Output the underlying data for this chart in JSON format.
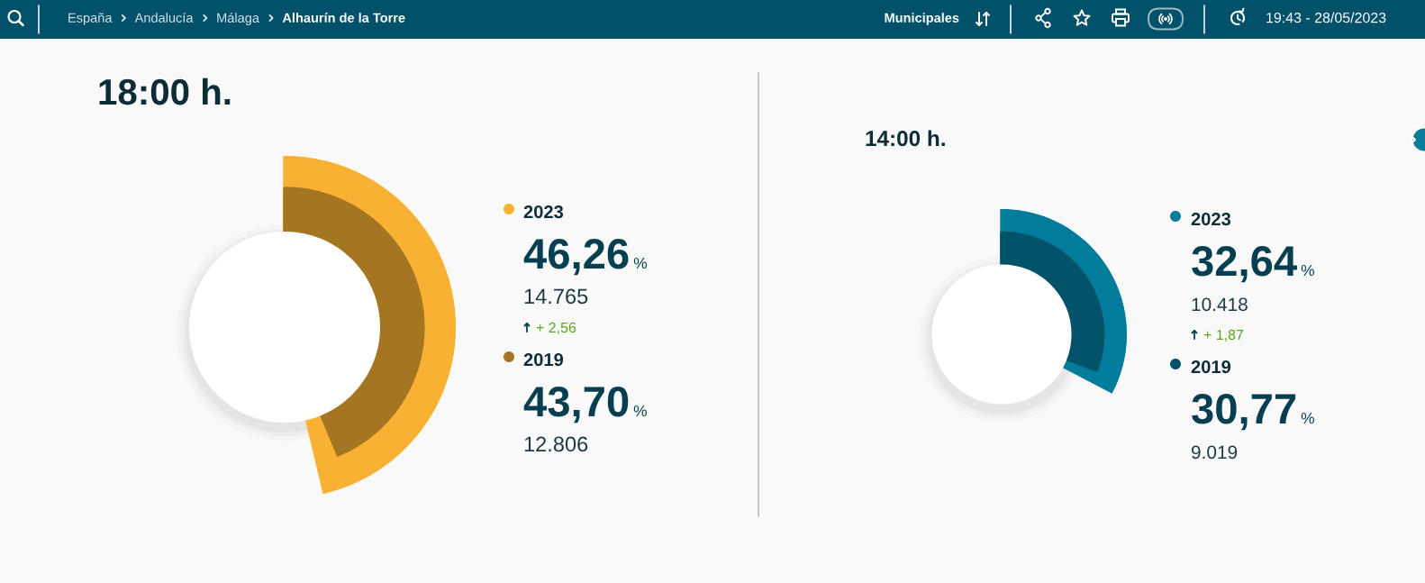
{
  "chart_data": [
    {
      "type": "other",
      "annotations": [
        "España",
        "Andalucía",
        "Málaga",
        "Alhaurín de la Torre",
        "Municipales",
        "19:43 - 28/05/2023"
      ]
    },
    {
      "type": "other",
      "title": "18:00 h.",
      "categories": [
        "2023",
        "2019"
      ],
      "values": [
        46.26,
        43.7
      ],
      "colors": [
        "#f8b133",
        "#a57621"
      ],
      "value_labels": [
        "46,26 %",
        "43,70 %"
      ],
      "annotations": [
        "14.765",
        "+ 2,56",
        "12.806"
      ]
    },
    {
      "type": "other",
      "title": "14:00 h.",
      "categories": [
        "2023",
        "2019"
      ],
      "values": [
        32.64,
        30.77
      ],
      "colors": [
        "#037c9b",
        "#02536a"
      ],
      "value_labels": [
        "32,64 %",
        "30,77 %"
      ],
      "annotations": [
        "10.418",
        "+ 1,87",
        "9.019"
      ]
    }
  ]
}
